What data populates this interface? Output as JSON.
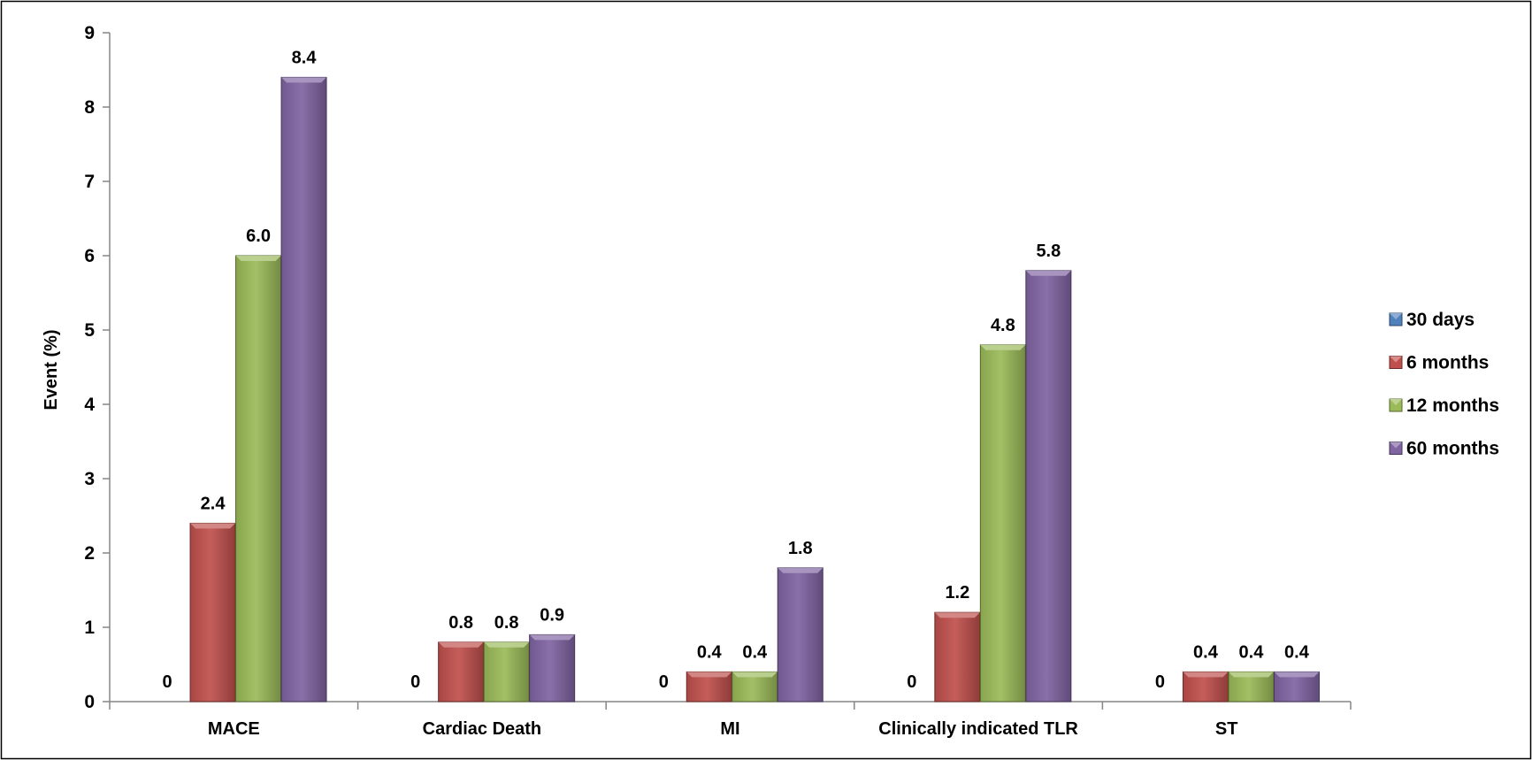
{
  "chart_data": {
    "type": "bar",
    "title": "",
    "xlabel": "",
    "ylabel": "Event (%)",
    "ylim": [
      0,
      9
    ],
    "yticks": [
      "0",
      "1",
      "2",
      "3",
      "4",
      "5",
      "6",
      "7",
      "8",
      "9"
    ],
    "grid": false,
    "legend_position": "right",
    "categories": [
      "MACE",
      "Cardiac Death",
      "MI",
      "Clinically indicated TLR",
      "ST"
    ],
    "series": [
      {
        "name": "30 days",
        "color": "#4F81BD",
        "values": [
          0,
          0,
          0,
          0,
          0
        ],
        "labels": [
          "0",
          "0",
          "0",
          "0",
          "0"
        ]
      },
      {
        "name": "6 months",
        "color": "#C0504D",
        "values": [
          2.4,
          0.8,
          0.4,
          1.2,
          0.4
        ],
        "labels": [
          "2.4",
          "0.8",
          "0.4",
          "1.2",
          "0.4"
        ]
      },
      {
        "name": "12 months",
        "color": "#9BBB59",
        "values": [
          6.0,
          0.8,
          0.4,
          4.8,
          0.4
        ],
        "labels": [
          "6.0",
          "0.8",
          "0.4",
          "4.8",
          "0.4"
        ]
      },
      {
        "name": "60 months",
        "color": "#8064A2",
        "values": [
          8.4,
          0.9,
          1.8,
          5.8,
          0.4
        ],
        "labels": [
          "8.4",
          "0.9",
          "1.8",
          "5.8",
          "0.4"
        ]
      }
    ]
  }
}
